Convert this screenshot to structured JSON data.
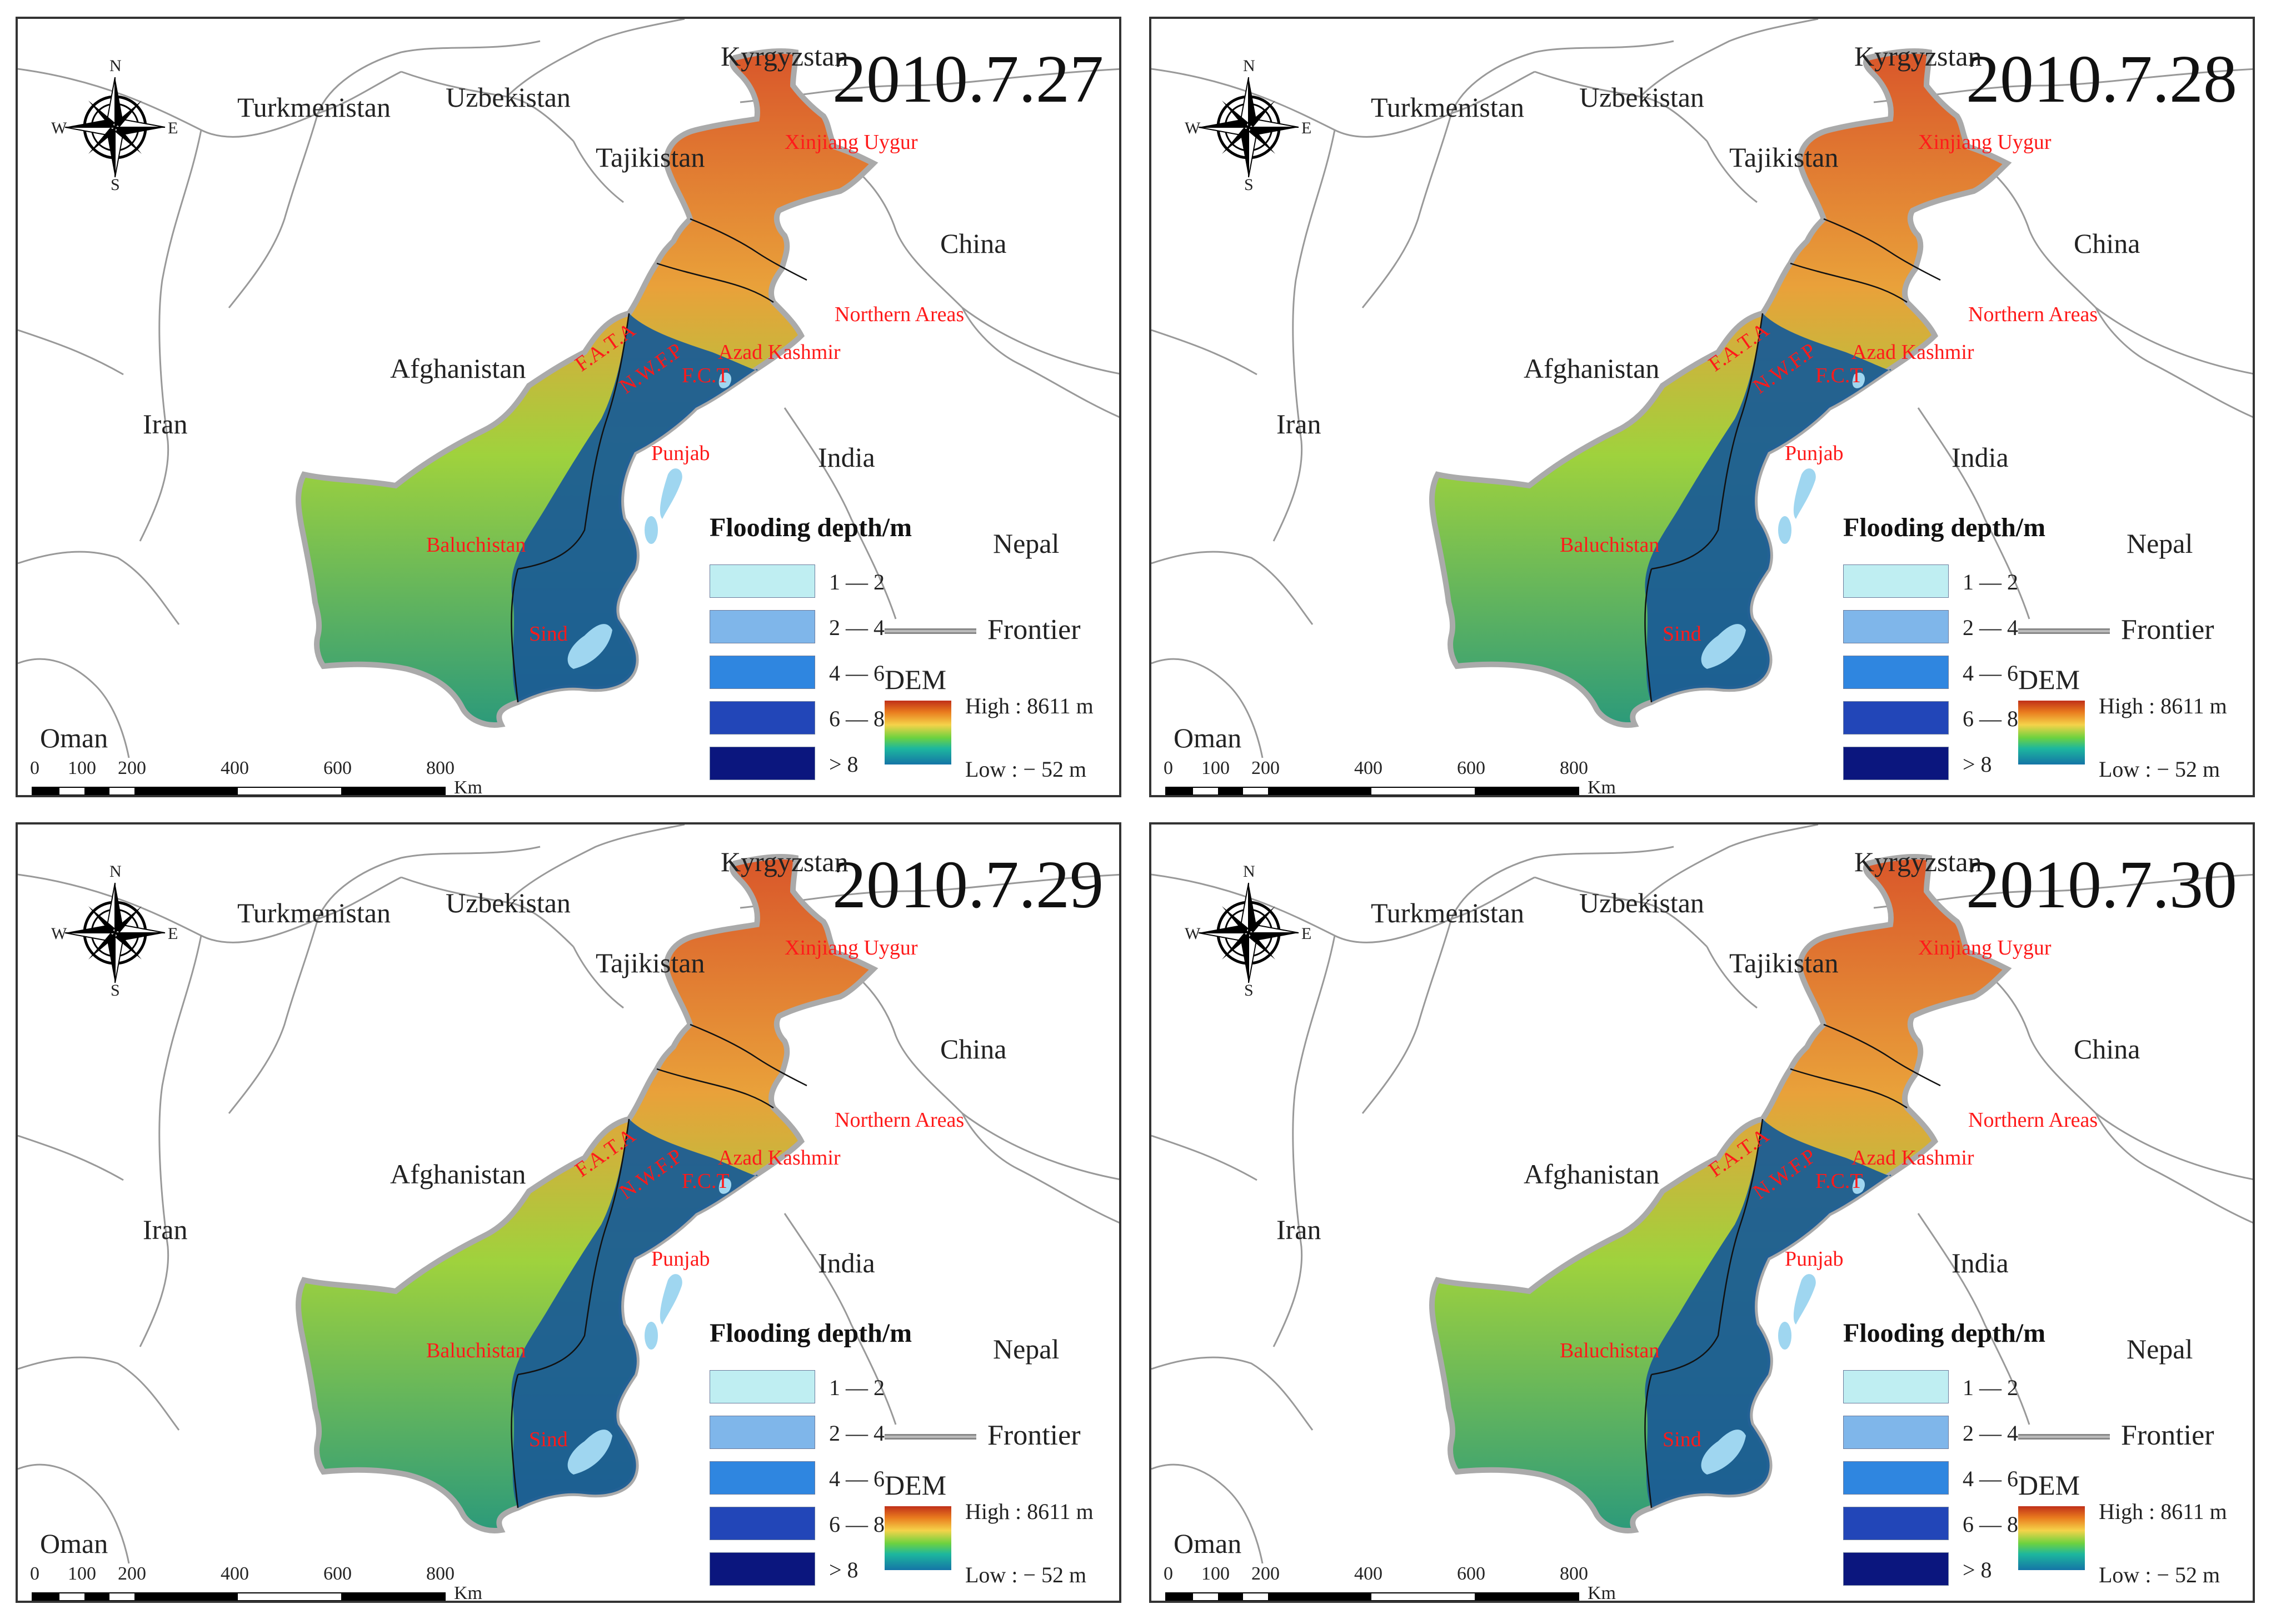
{
  "panels": [
    {
      "date": "2010.7.27"
    },
    {
      "date": "2010.7.28"
    },
    {
      "date": "2010.7.29"
    },
    {
      "date": "2010.7.30"
    }
  ],
  "countries": {
    "kyrgyzstan": "Kyrgyzstan",
    "turkmenistan": "Turkmenistan",
    "uzbekistan": "Uzbekistan",
    "tajikistan": "Tajikistan",
    "china": "China",
    "afghanistan": "Afghanistan",
    "iran": "Iran",
    "india": "India",
    "nepal": "Nepal",
    "oman": "Oman"
  },
  "regions": {
    "xinjiang": "Xinjiang Uygur",
    "northern_areas": "Northern Areas",
    "azad_kashmir": "Azad Kashmir",
    "fata": "F.A.T.A",
    "nwfp": "N.W.F.P",
    "fct": "F.C.T",
    "punjab": "Punjab",
    "baluchistan": "Baluchistan",
    "sind": "Sind"
  },
  "compass": {
    "n": "N",
    "s": "S",
    "e": "E",
    "w": "W"
  },
  "legend": {
    "title": "Flooding depth/m",
    "classes": [
      {
        "label": "1 — 2",
        "color": "#bfeef2"
      },
      {
        "label": "2 — 4",
        "color": "#7fb6ea"
      },
      {
        "label": "4 — 6",
        "color": "#2f86e0"
      },
      {
        "label": "6 — 8",
        "color": "#2246b8"
      },
      {
        "label": "> 8",
        "color": "#0b167e"
      }
    ],
    "frontier": "Frontier",
    "dem_title": "DEM",
    "dem_high": "High : 8611 m",
    "dem_low": "Low : − 52 m"
  },
  "scale": {
    "ticks": [
      "0",
      "100",
      "200",
      "400",
      "600",
      "800"
    ],
    "unit": "Km"
  },
  "colors": {
    "pakistan_lowland": "#1a5a8e",
    "pakistan_mid": "#3fb27a",
    "pakistan_high": "#e27a22",
    "flood": "#9fd6f0",
    "region_label": "#ff1a1a"
  }
}
